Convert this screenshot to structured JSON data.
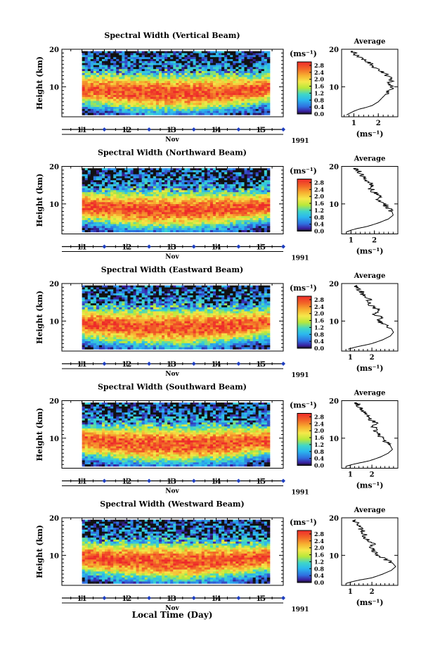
{
  "figure": {
    "xlabel": "Local Time (Day)",
    "month_label": "Nov",
    "year_label": "1991",
    "unit_label": "(ms⁻¹)",
    "avg_title": "Average",
    "avg_xlabel": "(ms⁻¹)"
  },
  "chart_data": [
    {
      "type": "heatmap",
      "title": "Spectral Width (Vertical Beam)",
      "ylabel": "Height (km)",
      "x_ticks": [
        "11",
        "12",
        "13",
        "14",
        "15"
      ],
      "xlim_days": [
        10.55,
        15.5
      ],
      "data_xlim_days": [
        11.0,
        15.2
      ],
      "y_ticks": [
        "10",
        "20"
      ],
      "ylim_km": [
        2,
        20
      ],
      "data_ylim_km": [
        2.5,
        19.5
      ],
      "colorbar": {
        "ticks": [
          "0.0",
          "0.4",
          "0.8",
          "1.2",
          "1.6",
          "2.0",
          "2.4",
          "2.8"
        ],
        "range": [
          0.0,
          3.0
        ]
      },
      "average_profile": {
        "x_ticks": [
          "1",
          "2"
        ],
        "xlim": [
          0.5,
          2.8
        ],
        "height_km": [
          2.5,
          3.0,
          3.5,
          4.0,
          4.5,
          5.0,
          6.0,
          7.0,
          8.0,
          9.0,
          10.0,
          11.0,
          12.0,
          13.0,
          14.0,
          15.0,
          16.0,
          17.0,
          18.0,
          19.0,
          19.5
        ],
        "width_ms": [
          0.7,
          0.85,
          1.0,
          1.2,
          1.5,
          1.75,
          2.0,
          2.15,
          2.3,
          2.45,
          2.55,
          2.5,
          2.55,
          2.35,
          2.15,
          1.9,
          1.7,
          1.45,
          1.2,
          1.0,
          0.95
        ]
      }
    },
    {
      "type": "heatmap",
      "title": "Spectral Width (Northward Beam)",
      "ylabel": "Height (km)",
      "x_ticks": [
        "11",
        "12",
        "13",
        "14",
        "15"
      ],
      "xlim_days": [
        10.55,
        15.5
      ],
      "data_xlim_days": [
        11.0,
        15.2
      ],
      "y_ticks": [
        "10",
        "20"
      ],
      "ylim_km": [
        2,
        20
      ],
      "data_ylim_km": [
        2.5,
        19.5
      ],
      "colorbar": {
        "ticks": [
          "0.0",
          "0.4",
          "0.8",
          "1.2",
          "1.6",
          "2.0",
          "2.4",
          "2.8"
        ],
        "range": [
          0.0,
          3.0
        ]
      },
      "average_profile": {
        "x_ticks": [
          "1",
          "2"
        ],
        "xlim": [
          0.6,
          3.0
        ],
        "height_km": [
          2.5,
          3.0,
          3.5,
          4.0,
          5.0,
          6.0,
          7.0,
          8.0,
          9.0,
          10.0,
          11.0,
          12.0,
          13.0,
          14.0,
          15.0,
          16.0,
          17.0,
          18.0,
          19.0,
          19.5
        ],
        "width_ms": [
          0.8,
          1.0,
          1.3,
          1.7,
          2.2,
          2.6,
          2.8,
          2.75,
          2.6,
          2.4,
          2.2,
          2.25,
          2.0,
          1.85,
          1.9,
          1.7,
          1.55,
          1.45,
          1.25,
          1.2
        ]
      }
    },
    {
      "type": "heatmap",
      "title": "Spectral Width (Eastward Beam)",
      "ylabel": "Height (km)",
      "x_ticks": [
        "11",
        "12",
        "13",
        "14",
        "15"
      ],
      "xlim_days": [
        10.55,
        15.5
      ],
      "data_xlim_days": [
        11.0,
        15.2
      ],
      "y_ticks": [
        "10",
        "20"
      ],
      "ylim_km": [
        2,
        20
      ],
      "data_ylim_km": [
        2.5,
        19.5
      ],
      "colorbar": {
        "ticks": [
          "0.0",
          "0.4",
          "0.8",
          "1.2",
          "1.6",
          "2.0",
          "2.4",
          "2.8"
        ],
        "range": [
          0.0,
          3.0
        ]
      },
      "average_profile": {
        "x_ticks": [
          "1",
          "2"
        ],
        "xlim": [
          0.6,
          3.2
        ],
        "height_km": [
          2.5,
          3.0,
          3.5,
          4.0,
          5.0,
          6.0,
          7.0,
          8.0,
          9.0,
          10.0,
          11.0,
          12.0,
          13.0,
          14.0,
          15.0,
          16.0,
          17.0,
          18.0,
          19.0,
          19.5
        ],
        "width_ms": [
          0.9,
          1.2,
          1.6,
          2.0,
          2.5,
          2.85,
          3.0,
          2.9,
          2.6,
          2.3,
          2.4,
          2.1,
          2.3,
          2.0,
          1.8,
          1.9,
          1.6,
          1.5,
          1.3,
          1.25
        ]
      }
    },
    {
      "type": "heatmap",
      "title": "Spectral Width (Southward Beam)",
      "ylabel": "Height (km)",
      "x_ticks": [
        "11",
        "12",
        "13",
        "14",
        "15"
      ],
      "xlim_days": [
        10.55,
        15.5
      ],
      "data_xlim_days": [
        11.0,
        15.2
      ],
      "y_ticks": [
        "10",
        "20"
      ],
      "ylim_km": [
        2,
        20
      ],
      "data_ylim_km": [
        2.5,
        19.5
      ],
      "colorbar": {
        "ticks": [
          "0.0",
          "0.4",
          "0.8",
          "1.2",
          "1.6",
          "2.0",
          "2.4",
          "2.8"
        ],
        "range": [
          0.0,
          3.0
        ]
      },
      "average_profile": {
        "x_ticks": [
          "1",
          "2"
        ],
        "xlim": [
          0.6,
          3.2
        ],
        "height_km": [
          2.5,
          3.0,
          3.5,
          4.0,
          5.0,
          6.0,
          7.0,
          8.0,
          9.0,
          10.0,
          11.0,
          12.0,
          13.0,
          14.0,
          15.0,
          16.0,
          17.0,
          18.0,
          19.0,
          19.5
        ],
        "width_ms": [
          0.8,
          1.1,
          1.5,
          1.9,
          2.4,
          2.75,
          2.95,
          2.85,
          2.65,
          2.45,
          2.35,
          2.2,
          2.1,
          2.15,
          1.95,
          1.8,
          1.65,
          1.5,
          1.35,
          1.3
        ]
      }
    },
    {
      "type": "heatmap",
      "title": "Spectral Width (Westward Beam)",
      "ylabel": "Height (km)",
      "x_ticks": [
        "11",
        "12",
        "13",
        "14",
        "15"
      ],
      "xlim_days": [
        10.55,
        15.5
      ],
      "data_xlim_days": [
        11.0,
        15.2
      ],
      "y_ticks": [
        "10",
        "20"
      ],
      "ylim_km": [
        2,
        20
      ],
      "data_ylim_km": [
        2.5,
        19.5
      ],
      "colorbar": {
        "ticks": [
          "0.0",
          "0.4",
          "0.8",
          "1.2",
          "1.6",
          "2.0",
          "2.4",
          "2.8"
        ],
        "range": [
          0.0,
          3.0
        ]
      },
      "average_profile": {
        "x_ticks": [
          "1",
          "2"
        ],
        "xlim": [
          0.6,
          3.2
        ],
        "height_km": [
          2.5,
          3.0,
          3.5,
          4.0,
          5.0,
          6.0,
          7.0,
          8.0,
          9.0,
          10.0,
          11.0,
          12.0,
          13.0,
          14.0,
          15.0,
          16.0,
          17.0,
          18.0,
          19.0,
          19.5
        ],
        "width_ms": [
          0.8,
          1.1,
          1.5,
          2.0,
          2.5,
          2.9,
          3.1,
          2.95,
          2.6,
          2.3,
          2.1,
          1.95,
          2.05,
          1.8,
          1.7,
          1.6,
          1.5,
          1.35,
          1.25,
          1.2
        ]
      }
    }
  ]
}
